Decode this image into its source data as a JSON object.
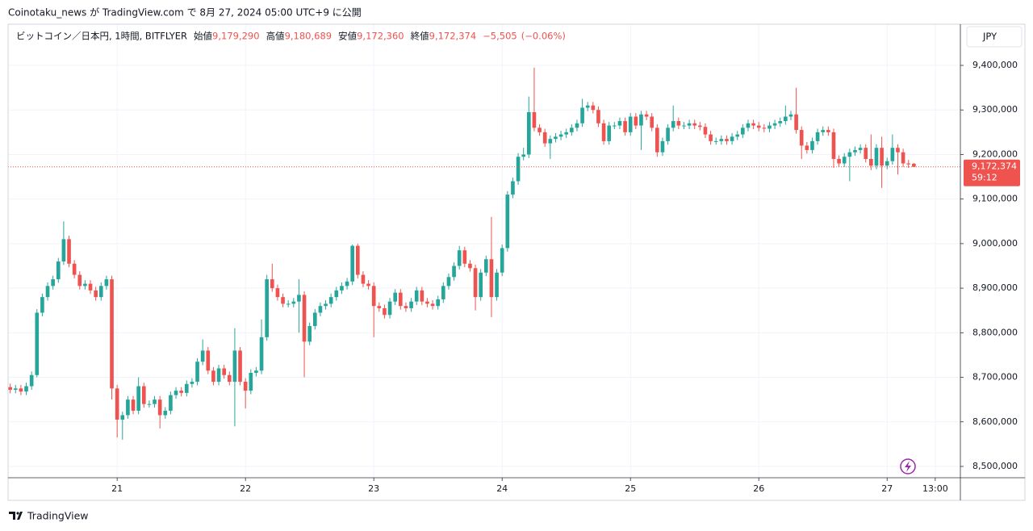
{
  "published": "Coinotaku_news が TradingView.com で 8月 27, 2024 05:00 UTC+9 に公開",
  "branding": "TradingView",
  "chart_data": {
    "type": "candlestick",
    "symbol": "ビットコイン／日本円, 1時間, BITFLYER",
    "ohlc_legend": [
      {
        "label": "始値",
        "value": {
          "value": 9179290,
          "label": "9,179,290"
        }
      },
      {
        "label": "高値",
        "value": {
          "value": 9180689,
          "label": "9,180,689"
        }
      },
      {
        "label": "安値",
        "value": {
          "value": 9172360,
          "label": "9,172,360"
        }
      },
      {
        "label": "終値",
        "value": {
          "value": 9172374,
          "label": "9,172,374"
        }
      }
    ],
    "change": {
      "value": -5505,
      "label": "−5,505"
    },
    "change_percent": {
      "value": -0.06,
      "label": "(−0.06%)"
    },
    "currency": "JPY",
    "up_color": "#26a69a",
    "down_color": "#ef5350",
    "open": [
      8678000,
      8672000,
      8675000,
      8668000,
      8680000,
      8705000,
      8845000,
      8880000,
      8905000,
      8920000,
      8960000,
      9010000,
      8955000,
      8930000,
      8905000,
      8910000,
      8895000,
      8880000,
      8905000,
      8920000,
      8675000,
      8605000,
      8615000,
      8650000,
      8625000,
      8680000,
      8640000,
      8640000,
      8650000,
      8615000,
      8625000,
      8660000,
      8670000,
      8665000,
      8685000,
      8690000,
      8735000,
      8760000,
      8715000,
      8690000,
      8720000,
      8705000,
      8690000,
      8760000,
      8690000,
      8670000,
      8710000,
      8715000,
      8790000,
      8920000,
      8900000,
      8880000,
      8865000,
      8865000,
      8870000,
      8885000,
      8780000,
      8815000,
      8845000,
      8860000,
      8865000,
      8880000,
      8895000,
      8905000,
      8915000,
      8995000,
      8930000,
      8910000,
      8905000,
      8860000,
      8855000,
      8840000,
      8870000,
      8890000,
      8860000,
      8855000,
      8870000,
      8895000,
      8870000,
      8865000,
      8860000,
      8875000,
      8905000,
      8925000,
      8950000,
      8985000,
      8955000,
      8945000,
      8880000,
      8935000,
      8965000,
      8880000,
      8935000,
      8990000,
      9110000,
      9140000,
      9195000,
      9200000,
      9295000,
      9260000,
      9250000,
      9225000,
      9235000,
      9240000,
      9245000,
      9250000,
      9260000,
      9270000,
      9305000,
      9310000,
      9300000,
      9270000,
      9230000,
      9265000,
      9265000,
      9275000,
      9250000,
      9285000,
      9265000,
      9290000,
      9285000,
      9260000,
      9205000,
      9230000,
      9260000,
      9275000,
      9265000,
      9265000,
      9270000,
      9265000,
      9262000,
      9245000,
      9230000,
      9230000,
      9235000,
      9230000,
      9240000,
      9245000,
      9260000,
      9270000,
      9265000,
      9260000,
      9258000,
      9265000,
      9270000,
      9275000,
      9285000,
      9290000,
      9255000,
      9220000,
      9210000,
      9230000,
      9250000,
      9255000,
      9250000,
      9190000,
      9180000,
      9195000,
      9205000,
      9210000,
      9215000,
      9190000,
      9175000,
      9215000,
      9175000,
      9185000,
      9215000,
      9205000,
      9180000,
      9179290
    ],
    "high": [
      8686000,
      8683000,
      8683000,
      8688000,
      8713000,
      8853000,
      8888000,
      8913000,
      8928000,
      8968000,
      9050000,
      9018000,
      8963000,
      8938000,
      8918000,
      8918000,
      8903000,
      8913000,
      8928000,
      8928000,
      8683000,
      8623000,
      8658000,
      8658000,
      8700000,
      8688000,
      8648000,
      8658000,
      8658000,
      8633000,
      8668000,
      8678000,
      8678000,
      8693000,
      8698000,
      8743000,
      8785000,
      8768000,
      8723000,
      8728000,
      8728000,
      8713000,
      8810000,
      8768000,
      8698000,
      8718000,
      8723000,
      8830000,
      8930000,
      8955000,
      8908000,
      8888000,
      8873000,
      8878000,
      8920000,
      8893000,
      8823000,
      8853000,
      8868000,
      8873000,
      8888000,
      8903000,
      8913000,
      8923000,
      8998000,
      9000000,
      8938000,
      8918000,
      8913000,
      8868000,
      8863000,
      8878000,
      8898000,
      8898000,
      8868000,
      8878000,
      8903000,
      8903000,
      8878000,
      8873000,
      8883000,
      8913000,
      8933000,
      8958000,
      8995000,
      8993000,
      8963000,
      8953000,
      8943000,
      8973000,
      9060000,
      8943000,
      8998000,
      9118000,
      9148000,
      9203000,
      9215000,
      9330000,
      9395000,
      9268000,
      9258000,
      9243000,
      9248000,
      9253000,
      9258000,
      9268000,
      9278000,
      9325000,
      9318000,
      9318000,
      9308000,
      9278000,
      9273000,
      9273000,
      9283000,
      9283000,
      9293000,
      9293000,
      9298000,
      9298000,
      9293000,
      9268000,
      9238000,
      9268000,
      9310000,
      9283000,
      9273000,
      9278000,
      9278000,
      9273000,
      9270000,
      9253000,
      9238000,
      9243000,
      9243000,
      9248000,
      9253000,
      9268000,
      9278000,
      9278000,
      9273000,
      9268000,
      9273000,
      9278000,
      9283000,
      9310000,
      9298000,
      9350000,
      9263000,
      9228000,
      9238000,
      9258000,
      9263000,
      9263000,
      9258000,
      9198000,
      9203000,
      9213000,
      9218000,
      9223000,
      9223000,
      9245000,
      9223000,
      9240000,
      9193000,
      9245000,
      9223000,
      9213000,
      9188000,
      9180689
    ],
    "low": [
      8664000,
      8664000,
      8660000,
      8660000,
      8672000,
      8700000,
      8837000,
      8872000,
      8897000,
      8912000,
      8952000,
      8947000,
      8922000,
      8897000,
      8897000,
      8887000,
      8872000,
      8872000,
      8897000,
      8650000,
      8565000,
      8560000,
      8607000,
      8617000,
      8617000,
      8632000,
      8632000,
      8632000,
      8585000,
      8607000,
      8617000,
      8652000,
      8657000,
      8657000,
      8677000,
      8682000,
      8727000,
      8707000,
      8682000,
      8682000,
      8697000,
      8682000,
      8590000,
      8682000,
      8630000,
      8662000,
      8702000,
      8707000,
      8782000,
      8892000,
      8872000,
      8857000,
      8857000,
      8857000,
      8800000,
      8700000,
      8772000,
      8807000,
      8837000,
      8852000,
      8857000,
      8872000,
      8887000,
      8897000,
      8907000,
      8922000,
      8902000,
      8897000,
      8790000,
      8847000,
      8832000,
      8832000,
      8862000,
      8852000,
      8847000,
      8847000,
      8862000,
      8862000,
      8857000,
      8852000,
      8852000,
      8867000,
      8897000,
      8917000,
      8942000,
      8947000,
      8937000,
      8850000,
      8872000,
      8927000,
      8835000,
      8872000,
      8927000,
      8982000,
      9102000,
      9132000,
      9187000,
      9192000,
      9252000,
      9242000,
      9217000,
      9190000,
      9227000,
      9232000,
      9237000,
      9242000,
      9252000,
      9262000,
      9297000,
      9292000,
      9262000,
      9222000,
      9222000,
      9257000,
      9257000,
      9242000,
      9242000,
      9257000,
      9210000,
      9277000,
      9252000,
      9195000,
      9197000,
      9222000,
      9252000,
      9257000,
      9257000,
      9257000,
      9257000,
      9254000,
      9237000,
      9222000,
      9222000,
      9222000,
      9222000,
      9222000,
      9232000,
      9237000,
      9252000,
      9257000,
      9252000,
      9250000,
      9250000,
      9257000,
      9262000,
      9267000,
      9277000,
      9247000,
      9190000,
      9202000,
      9202000,
      9222000,
      9242000,
      9242000,
      9170000,
      9172000,
      9172000,
      9140000,
      9197000,
      9202000,
      9182000,
      9165000,
      9167000,
      9125000,
      9167000,
      9177000,
      9155000,
      9172000,
      9170000,
      9172360
    ],
    "close": [
      8672000,
      8675000,
      8668000,
      8680000,
      8705000,
      8845000,
      8880000,
      8905000,
      8920000,
      8960000,
      9010000,
      8955000,
      8930000,
      8905000,
      8910000,
      8895000,
      8880000,
      8905000,
      8920000,
      8675000,
      8605000,
      8615000,
      8650000,
      8625000,
      8680000,
      8640000,
      8640000,
      8650000,
      8615000,
      8625000,
      8660000,
      8670000,
      8665000,
      8685000,
      8690000,
      8735000,
      8760000,
      8715000,
      8690000,
      8720000,
      8705000,
      8690000,
      8760000,
      8690000,
      8670000,
      8710000,
      8715000,
      8790000,
      8920000,
      8900000,
      8880000,
      8865000,
      8865000,
      8870000,
      8885000,
      8780000,
      8815000,
      8845000,
      8860000,
      8865000,
      8880000,
      8895000,
      8905000,
      8915000,
      8995000,
      8930000,
      8910000,
      8905000,
      8860000,
      8855000,
      8840000,
      8870000,
      8890000,
      8860000,
      8855000,
      8870000,
      8895000,
      8870000,
      8865000,
      8860000,
      8875000,
      8905000,
      8925000,
      8950000,
      8985000,
      8955000,
      8945000,
      8880000,
      8935000,
      8965000,
      8880000,
      8935000,
      8990000,
      9110000,
      9140000,
      9195000,
      9200000,
      9295000,
      9260000,
      9250000,
      9225000,
      9235000,
      9240000,
      9245000,
      9250000,
      9260000,
      9270000,
      9305000,
      9310000,
      9300000,
      9270000,
      9230000,
      9265000,
      9265000,
      9275000,
      9250000,
      9285000,
      9265000,
      9290000,
      9285000,
      9260000,
      9205000,
      9230000,
      9260000,
      9275000,
      9265000,
      9265000,
      9270000,
      9265000,
      9262000,
      9245000,
      9230000,
      9230000,
      9235000,
      9230000,
      9240000,
      9245000,
      9260000,
      9270000,
      9265000,
      9260000,
      9258000,
      9265000,
      9270000,
      9275000,
      9285000,
      9290000,
      9255000,
      9220000,
      9210000,
      9230000,
      9250000,
      9255000,
      9250000,
      9190000,
      9180000,
      9195000,
      9205000,
      9210000,
      9215000,
      9190000,
      9175000,
      9215000,
      9175000,
      9185000,
      9215000,
      9205000,
      9180000,
      9177879,
      9172374
    ],
    "last_price": {
      "value": 9172374,
      "label": "9,172,374"
    },
    "countdown": "59:12",
    "xlim": [
      -0.4,
      177.7
    ],
    "xticks": [
      {
        "value": 20,
        "label": "21"
      },
      {
        "value": 44,
        "label": "22"
      },
      {
        "value": 68,
        "label": "23"
      },
      {
        "value": 92,
        "label": "24"
      },
      {
        "value": 116,
        "label": "25"
      },
      {
        "value": 140,
        "label": "26"
      },
      {
        "value": 164,
        "label": "27"
      },
      {
        "value": 173,
        "label": "13:00"
      }
    ],
    "ylim": [
      8474600,
      9492400
    ],
    "yticks": [
      {
        "value": 8500000,
        "label": "8,500,000"
      },
      {
        "value": 8600000,
        "label": "8,600,000"
      },
      {
        "value": 8700000,
        "label": "8,700,000"
      },
      {
        "value": 8800000,
        "label": "8,800,000"
      },
      {
        "value": 8900000,
        "label": "8,900,000"
      },
      {
        "value": 9000000,
        "label": "9,000,000"
      },
      {
        "value": 9100000,
        "label": "9,100,000"
      },
      {
        "value": 9200000,
        "label": "9,200,000"
      },
      {
        "value": 9300000,
        "label": "9,300,000"
      },
      {
        "value": 9400000,
        "label": "9,400,000"
      }
    ],
    "grid": true
  }
}
